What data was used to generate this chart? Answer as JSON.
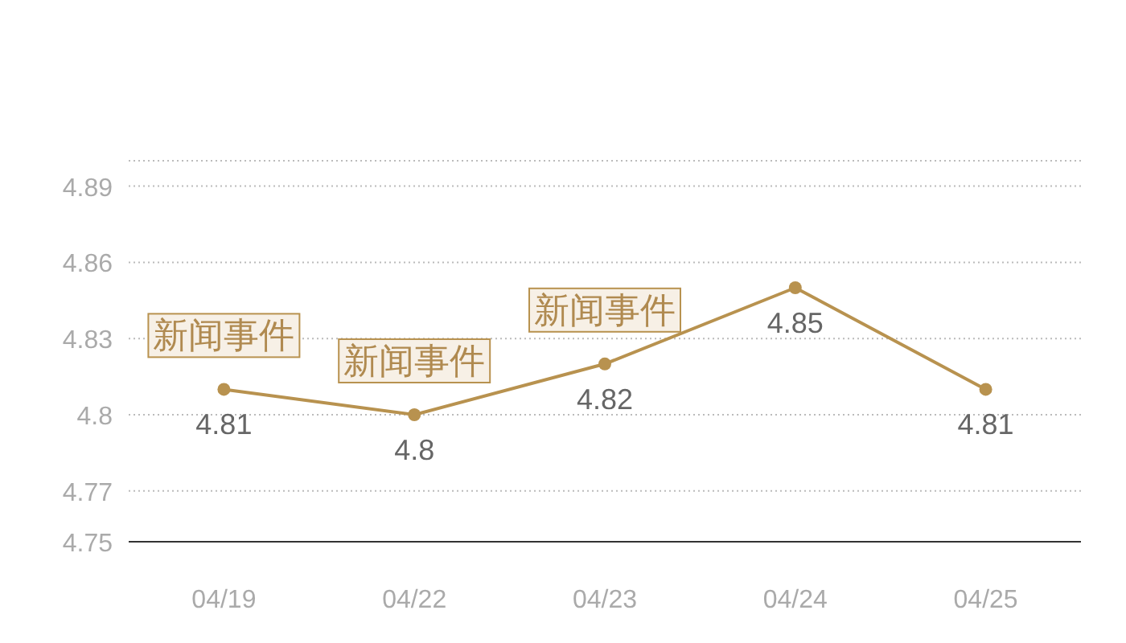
{
  "chart_data": {
    "type": "line",
    "categories": [
      "04/19",
      "04/22",
      "04/23",
      "04/24",
      "04/25"
    ],
    "series": [
      {
        "color": "#b8924f",
        "values": [
          4.81,
          4.8,
          4.82,
          4.85,
          4.81
        ]
      }
    ],
    "ylim": [
      4.75,
      4.9
    ],
    "yticks": [
      4.75,
      4.77,
      4.8,
      4.83,
      4.86,
      4.89,
      {
        "value": 4.9,
        "label": null
      }
    ],
    "grid": "y",
    "data_labels": true,
    "marker": "circle",
    "line_style": "solid",
    "annotations": [
      {
        "text": "新闻事件",
        "x": "04/19",
        "y": 4.81
      },
      {
        "text": "新闻事件",
        "x": "04/22",
        "y": 4.8
      },
      {
        "text": "新闻事件",
        "x": "04/23",
        "y": 4.82
      }
    ]
  }
}
